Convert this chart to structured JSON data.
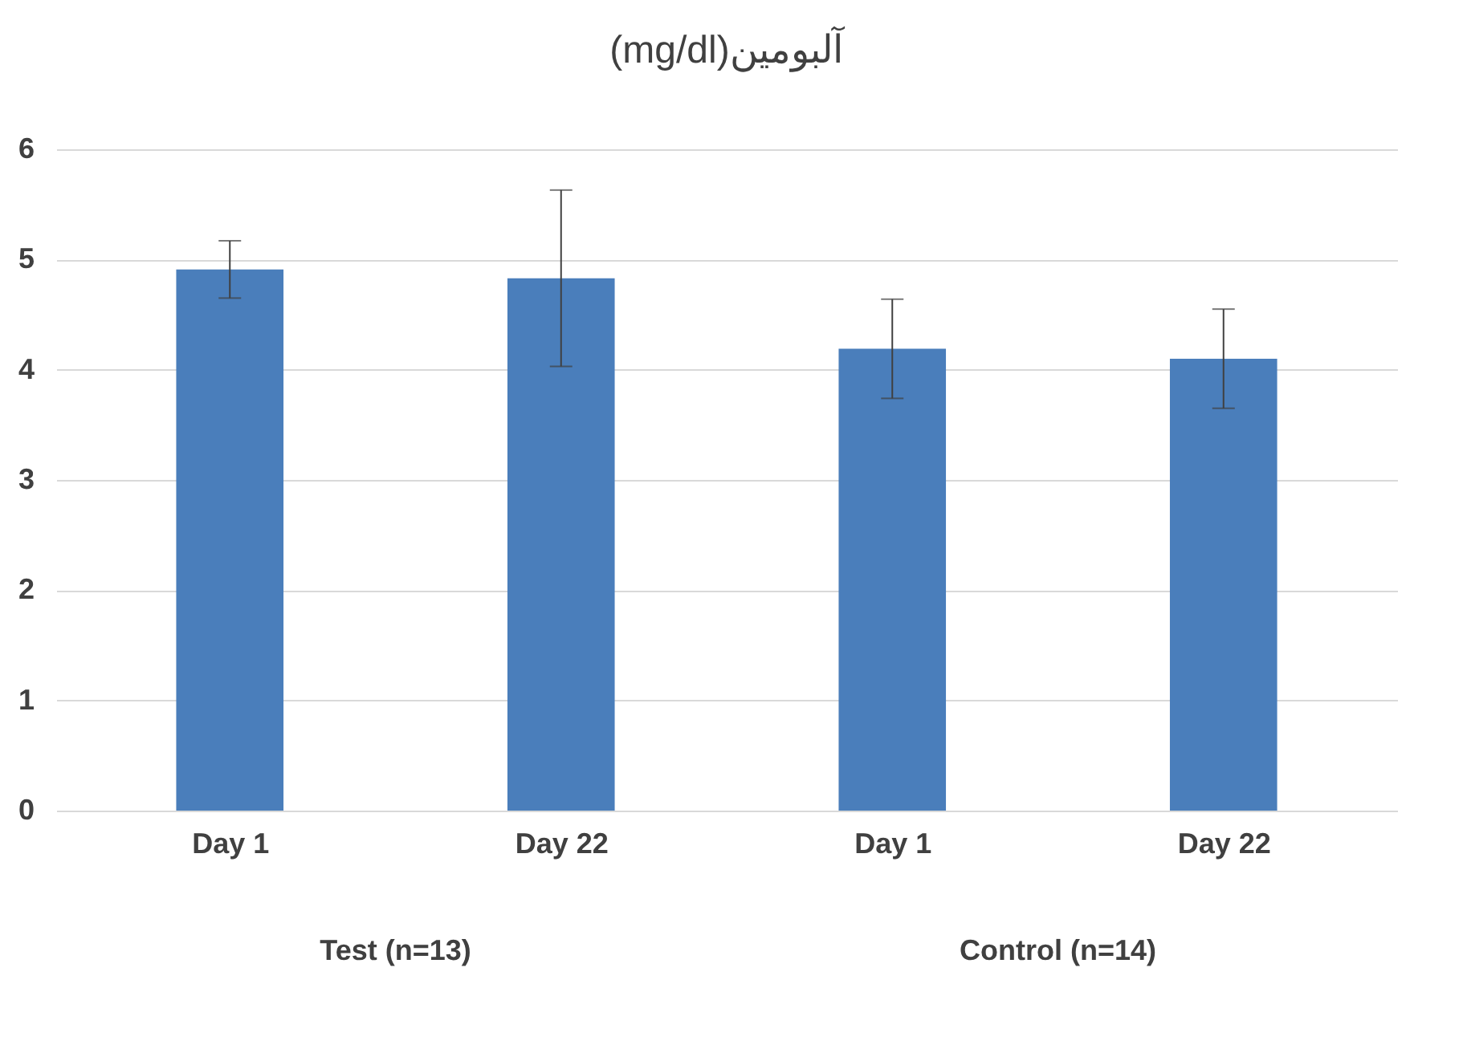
{
  "chart_data": {
    "type": "bar",
    "title": "(mg/dl)آلبومین",
    "categories": [
      "Day 1",
      "Day 22",
      "Day 1",
      "Day 22"
    ],
    "values": [
      4.91,
      4.83,
      4.19,
      4.1
    ],
    "errors": [
      0.26,
      0.8,
      0.45,
      0.45
    ],
    "color": "#4a7ebb",
    "ylim": [
      0,
      6
    ],
    "yticks": [
      0,
      1,
      2,
      3,
      4,
      5,
      6
    ],
    "grid": "y",
    "annotations": [
      "Test (n=13)",
      "Control (n=14)"
    ]
  }
}
